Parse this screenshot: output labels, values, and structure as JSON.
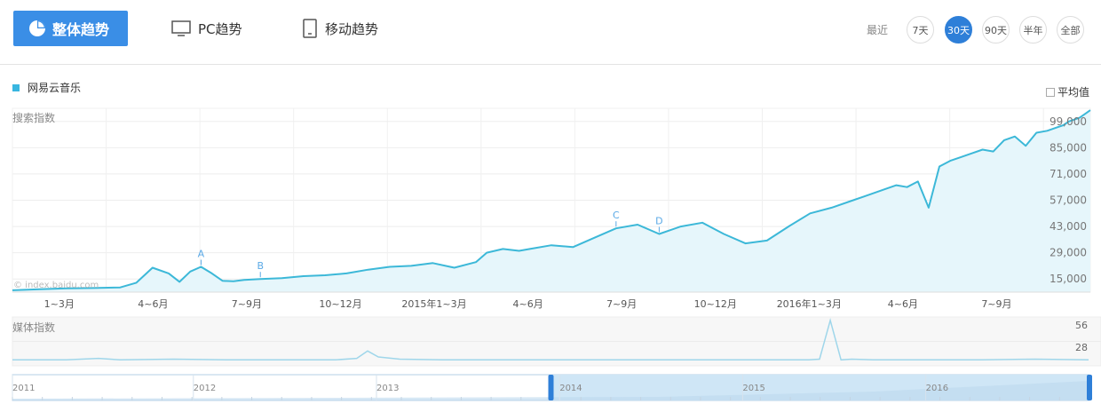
{
  "tabs": {
    "overall": "整体趋势",
    "pc": "PC趋势",
    "mobile": "移动趋势"
  },
  "range": {
    "label": "最近",
    "options": [
      "7天",
      "30天",
      "90天",
      "半年",
      "全部"
    ],
    "active": "30天"
  },
  "legend": {
    "series_name": "网易云音乐",
    "color": "#39b6e0"
  },
  "average_label": "平均值",
  "search_label": "搜索指数",
  "media_label": "媒体指数",
  "watermark": "© index.baidu.com",
  "colors": {
    "accent": "#3a8ee6",
    "line": "#3cb8d8",
    "fill": "#e6f6fb",
    "navigator_fill": "#cfe6f6"
  },
  "chart_data": [
    {
      "type": "line",
      "name": "search_index",
      "ytick_labels": [
        "99,000",
        "85,000",
        "71,000",
        "57,000",
        "43,000",
        "29,000",
        "15,000"
      ],
      "ylim": [
        1000,
        99000
      ],
      "xtick_labels": [
        "1~3月",
        "4~6月",
        "7~9月",
        "10~12月",
        "2015年1~3月",
        "4~6月",
        "7~9月",
        "10~12月",
        "2016年1~3月",
        "4~6月",
        "7~9月"
      ],
      "series": [
        {
          "name": "网易云音乐",
          "x": [
            0,
            0.025,
            0.05,
            0.075,
            0.1,
            0.115,
            0.13,
            0.145,
            0.155,
            0.165,
            0.175,
            0.185,
            0.195,
            0.205,
            0.215,
            0.23,
            0.25,
            0.27,
            0.29,
            0.31,
            0.33,
            0.35,
            0.37,
            0.39,
            0.41,
            0.43,
            0.44,
            0.455,
            0.47,
            0.48,
            0.5,
            0.52,
            0.54,
            0.56,
            0.58,
            0.6,
            0.62,
            0.64,
            0.66,
            0.68,
            0.7,
            0.72,
            0.74,
            0.76,
            0.78,
            0.79,
            0.8,
            0.81,
            0.82,
            0.83,
            0.84,
            0.85,
            0.86,
            0.87,
            0.88,
            0.89,
            0.9,
            0.91,
            0.92,
            0.93,
            0.94,
            0.95,
            0.96,
            0.97,
            0.975,
            0.98,
            0.99,
            1
          ],
          "values": [
            2000,
            2500,
            3000,
            3200,
            3500,
            6000,
            14000,
            11000,
            6500,
            12000,
            14500,
            11000,
            7000,
            6800,
            7500,
            8000,
            8500,
            9500,
            10000,
            11000,
            13000,
            14500,
            15000,
            16500,
            14000,
            17000,
            22000,
            24000,
            23000,
            24000,
            26000,
            25000,
            30000,
            35000,
            37000,
            32000,
            36000,
            38000,
            32000,
            27000,
            28500,
            36000,
            43000,
            46000,
            50000,
            52000,
            54000,
            56000,
            58000,
            57000,
            60000,
            46000,
            68000,
            71000,
            73000,
            75000,
            77000,
            76000,
            82000,
            84000,
            79000,
            86000,
            87000,
            89000,
            90000,
            92000,
            94000,
            98000
          ]
        }
      ],
      "annotations": [
        {
          "label": "A",
          "x_index": 10
        },
        {
          "label": "B",
          "x_index": 15
        },
        {
          "label": "C",
          "x_index": 33
        },
        {
          "label": "D",
          "x_index": 35
        }
      ],
      "grid": true,
      "legend": "top-left"
    },
    {
      "type": "line",
      "name": "media_index",
      "ytick_labels": [
        "56",
        "28"
      ],
      "ylim": [
        0,
        56
      ],
      "series": [
        {
          "name": "网易云音乐",
          "x": [
            0,
            0.05,
            0.08,
            0.1,
            0.15,
            0.2,
            0.25,
            0.3,
            0.32,
            0.33,
            0.34,
            0.36,
            0.4,
            0.5,
            0.6,
            0.65,
            0.7,
            0.74,
            0.75,
            0.76,
            0.77,
            0.78,
            0.8,
            0.85,
            0.9,
            0.95,
            1
          ],
          "values": [
            2,
            2,
            4,
            2,
            3,
            2,
            2,
            2,
            4,
            14,
            6,
            3,
            2,
            2,
            2,
            2,
            2,
            2,
            3,
            55,
            2,
            3,
            2,
            2,
            2,
            3,
            2
          ]
        }
      ]
    },
    {
      "type": "area",
      "name": "navigator",
      "xtick_labels": [
        "2011",
        "2012",
        "2013",
        "2014",
        "2015",
        "2016"
      ],
      "selection": [
        0.5,
        1
      ]
    }
  ]
}
